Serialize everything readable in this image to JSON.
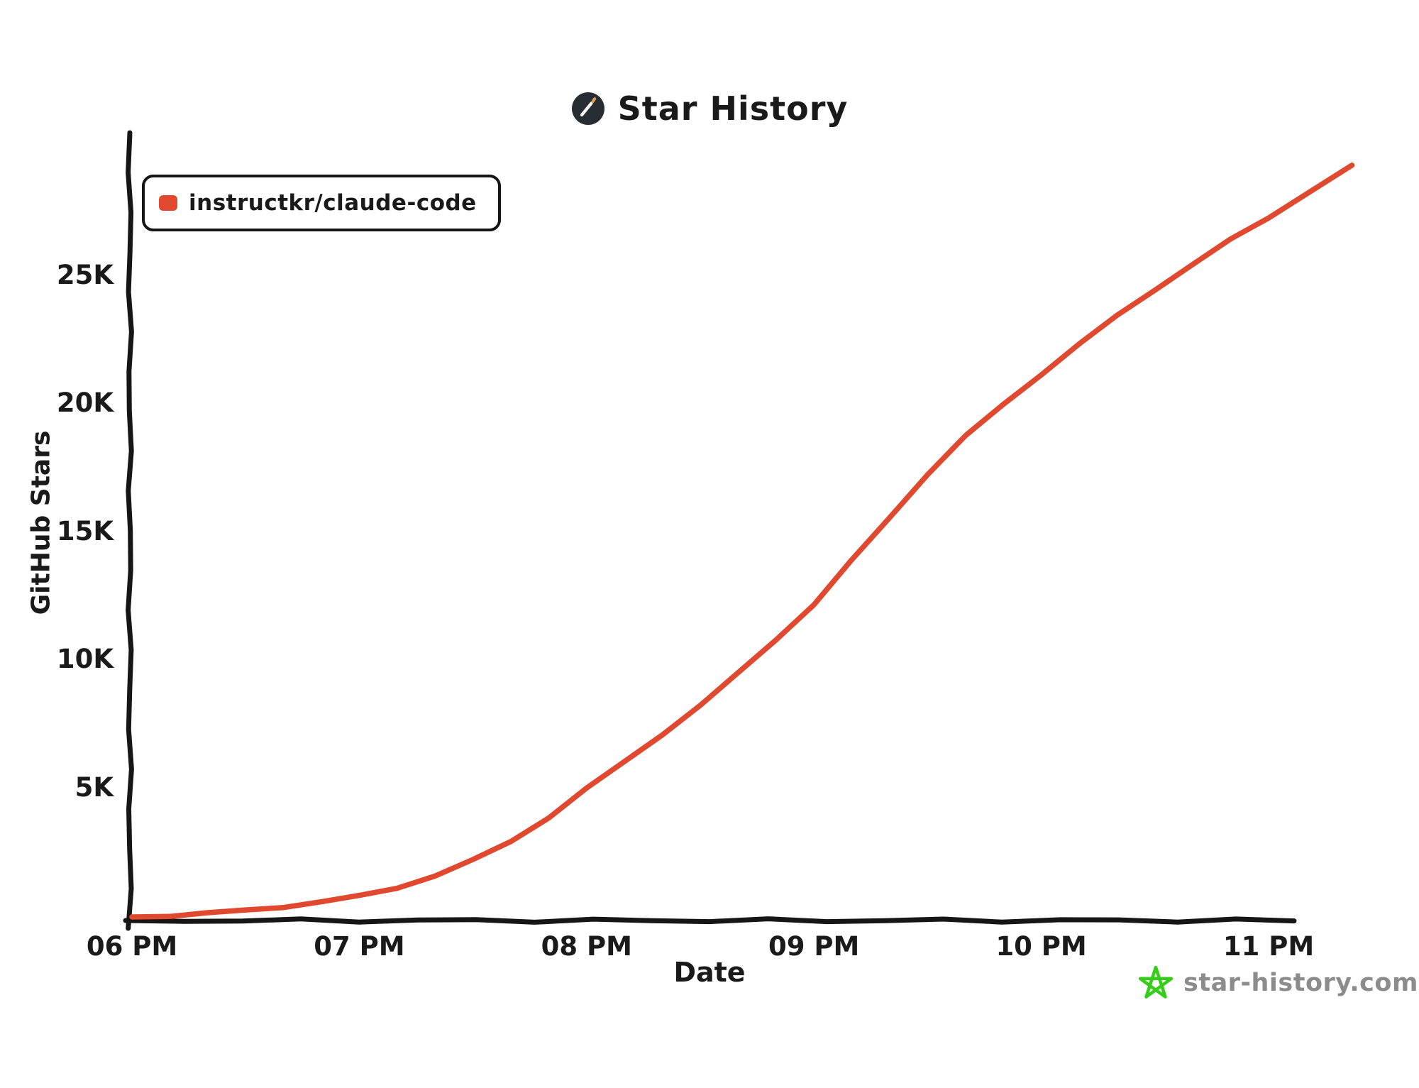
{
  "header": {
    "title": "Star History"
  },
  "legend": {
    "series_label": "instructkr/claude-code",
    "swatch_color": "#e0492f"
  },
  "axes": {
    "y_title": "GitHub Stars",
    "x_title": "Date"
  },
  "footer": {
    "site": "star-history.com",
    "star_color": "#34cd17"
  },
  "colors": {
    "line": "#e0492f",
    "axis": "#161616",
    "title_icon_bg": "#282c33",
    "wand_tip": "#dd9b52"
  },
  "chart_data": {
    "type": "line",
    "title": "Star History",
    "xlabel": "Date",
    "ylabel": "GitHub Stars",
    "grid": false,
    "legend_position": "top-left",
    "x_axis_unit": "time of day",
    "x_range_minutes": [
      0,
      322
    ],
    "y_range": [
      0,
      29500
    ],
    "x_ticks": [
      {
        "label": "06 PM",
        "minute": 0
      },
      {
        "label": "07 PM",
        "minute": 60
      },
      {
        "label": "08 PM",
        "minute": 120
      },
      {
        "label": "09 PM",
        "minute": 180
      },
      {
        "label": "10 PM",
        "minute": 240
      },
      {
        "label": "11 PM",
        "minute": 300
      }
    ],
    "y_ticks": [
      {
        "label": "5K",
        "value": 5000
      },
      {
        "label": "10K",
        "value": 10000
      },
      {
        "label": "15K",
        "value": 15000
      },
      {
        "label": "20K",
        "value": 20000
      },
      {
        "label": "25K",
        "value": 25000
      }
    ],
    "series": [
      {
        "name": "instructkr/claude-code",
        "color": "#e0492f",
        "points": [
          {
            "minute": 0,
            "stars": 0
          },
          {
            "minute": 10,
            "stars": 60
          },
          {
            "minute": 20,
            "stars": 140
          },
          {
            "minute": 30,
            "stars": 250
          },
          {
            "minute": 40,
            "stars": 410
          },
          {
            "minute": 50,
            "stars": 590
          },
          {
            "minute": 60,
            "stars": 800
          },
          {
            "minute": 70,
            "stars": 1150
          },
          {
            "minute": 80,
            "stars": 1620
          },
          {
            "minute": 90,
            "stars": 2200
          },
          {
            "minute": 100,
            "stars": 2950
          },
          {
            "minute": 110,
            "stars": 3900
          },
          {
            "minute": 120,
            "stars": 5000
          },
          {
            "minute": 130,
            "stars": 6050
          },
          {
            "minute": 140,
            "stars": 7150
          },
          {
            "minute": 150,
            "stars": 8250
          },
          {
            "minute": 160,
            "stars": 9500
          },
          {
            "minute": 170,
            "stars": 10850
          },
          {
            "minute": 180,
            "stars": 12200
          },
          {
            "minute": 190,
            "stars": 13900
          },
          {
            "minute": 200,
            "stars": 15600
          },
          {
            "minute": 210,
            "stars": 17300
          },
          {
            "minute": 220,
            "stars": 18750
          },
          {
            "minute": 230,
            "stars": 20000
          },
          {
            "minute": 240,
            "stars": 21200
          },
          {
            "minute": 250,
            "stars": 22350
          },
          {
            "minute": 260,
            "stars": 23450
          },
          {
            "minute": 270,
            "stars": 24500
          },
          {
            "minute": 280,
            "stars": 25480
          },
          {
            "minute": 290,
            "stars": 26420
          },
          {
            "minute": 300,
            "stars": 27300
          },
          {
            "minute": 310,
            "stars": 28250
          },
          {
            "minute": 322,
            "stars": 29300
          }
        ]
      }
    ]
  }
}
